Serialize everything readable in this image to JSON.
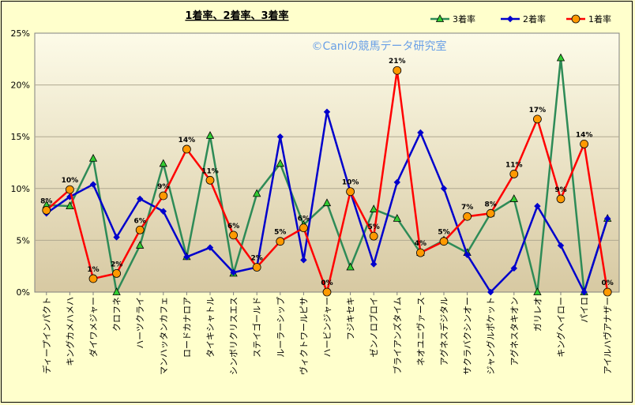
{
  "chart_data": {
    "type": "line",
    "title": "1着率、2着率、3着率",
    "watermark": "©Caniの競馬データ研究室",
    "ylim": [
      0,
      25
    ],
    "y_ticks": [
      "0%",
      "5%",
      "10%",
      "15%",
      "20%",
      "25%"
    ],
    "grid": true,
    "legend_position": "top-right",
    "categories": [
      "ディープインパクト",
      "キングカメハメハ",
      "ダイワメジャー",
      "クロフネ",
      "ハーツクライ",
      "マンハッタンカフェ",
      "ロードカナロア",
      "タイキシャトル",
      "シンボリクリスエス",
      "ステイゴールド",
      "ルーラーシップ",
      "ヴィクトワールピサ",
      "ハービンジャー",
      "フジキセキ",
      "ゼンノロブロイ",
      "ブライアンズタイム",
      "ネオユニヴァース",
      "アグネスデジタル",
      "サクラバクシンオー",
      "ジャングルポケット",
      "アグネスタキオン",
      "ガリレオ",
      "キングヘイロー",
      "パイロ",
      "アイルハヴアナザー"
    ],
    "series": [
      {
        "name": "3着率",
        "color": "#2e8b57",
        "marker": "triangle",
        "marker_fill": "#33cc33",
        "values": [
          8.4,
          8.3,
          12.9,
          0.0,
          4.5,
          12.4,
          3.4,
          15.1,
          1.8,
          9.5,
          12.4,
          6.5,
          8.6,
          2.4,
          8.0,
          7.1,
          3.8,
          5.0,
          3.8,
          7.6,
          9.0,
          0.0,
          22.6,
          0.0,
          7.1
        ]
      },
      {
        "name": "2着率",
        "color": "#0000cc",
        "marker": "diamond",
        "marker_fill": "#0000cc",
        "values": [
          7.6,
          9.2,
          10.4,
          5.3,
          9.0,
          7.8,
          3.4,
          4.3,
          1.9,
          2.4,
          15.0,
          3.1,
          17.4,
          9.7,
          2.7,
          10.6,
          15.4,
          10.0,
          3.6,
          0.0,
          2.3,
          8.3,
          4.5,
          0.0,
          7.1
        ]
      },
      {
        "name": "1着率",
        "color": "#ff0000",
        "marker": "circle",
        "marker_fill": "#ff9900",
        "values": [
          7.9,
          9.9,
          1.3,
          1.8,
          6.0,
          9.3,
          13.8,
          10.8,
          5.5,
          2.4,
          4.9,
          6.2,
          0.0,
          9.7,
          5.4,
          21.4,
          3.8,
          4.9,
          7.3,
          7.6,
          11.4,
          16.7,
          9.0,
          14.3,
          0.0
        ]
      }
    ],
    "data_labels": [
      "8%",
      "10%",
      "1%",
      "2%",
      "6%",
      "9%",
      "14%",
      "11%",
      "6%",
      "2%",
      "5%",
      "6%",
      "0%",
      "10%",
      "5%",
      "21%",
      "4%",
      "5%",
      "7%",
      "8%",
      "11%",
      "17%",
      "9%",
      "14%",
      "0%"
    ]
  }
}
